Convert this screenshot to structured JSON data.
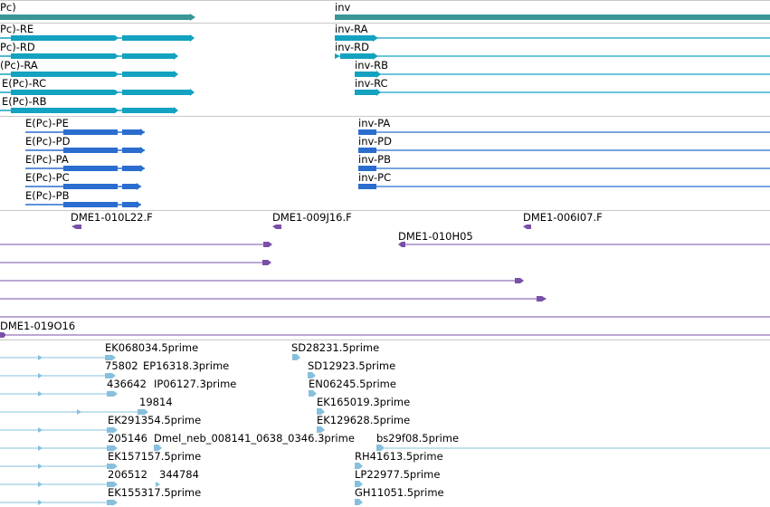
{
  "tracks": {
    "genes": [
      {
        "label": "Pc)"
      },
      {
        "label": "inv"
      }
    ],
    "transcripts_cyan": [
      {
        "label": "Pc)-RE"
      },
      {
        "label": "Pc)-RD"
      },
      {
        "label": "(Pc)-RA"
      },
      {
        "label": "E(Pc)-RC"
      },
      {
        "label": "E(Pc)-RB"
      },
      {
        "label": "inv-RA"
      },
      {
        "label": "inv-RD"
      },
      {
        "label": "inv-RB"
      },
      {
        "label": "inv-RC"
      }
    ],
    "proteins_blue": [
      {
        "label": "E(Pc)-PE"
      },
      {
        "label": "E(Pc)-PD"
      },
      {
        "label": "E(Pc)-PA"
      },
      {
        "label": "E(Pc)-PC"
      },
      {
        "label": "E(Pc)-PB"
      },
      {
        "label": "inv-PA"
      },
      {
        "label": "inv-PD"
      },
      {
        "label": "inv-PB"
      },
      {
        "label": "inv-PC"
      }
    ],
    "clones": [
      {
        "label": "DME1-010L22.F"
      },
      {
        "label": "DME1-009J16.F"
      },
      {
        "label": "DME1-006I07.F"
      },
      {
        "label": "DME1-010H05"
      },
      {
        "label": ""
      },
      {
        "label": ""
      },
      {
        "label": ""
      },
      {
        "label": ""
      },
      {
        "label": "DME1-019O16"
      }
    ],
    "ests": [
      {
        "label": "EK068034.5prime"
      },
      {
        "label": "SD28231.5prime"
      },
      {
        "label": "75802"
      },
      {
        "label": "EP16318.3prime"
      },
      {
        "label": "SD12923.5prime"
      },
      {
        "label": "436642"
      },
      {
        "label": "IP06127.3prime"
      },
      {
        "label": "EN06245.5prime"
      },
      {
        "label": "19814"
      },
      {
        "label": "EK165019.3prime"
      },
      {
        "label": "EK291354.5prime"
      },
      {
        "label": "EK129628.5prime"
      },
      {
        "label": "205146"
      },
      {
        "label": "Dmel_neb_008141_0638_0346.3prime"
      },
      {
        "label": "bs29f08.5prime"
      },
      {
        "label": "EK157157.5prime"
      },
      {
        "label": "RH41613.5prime"
      },
      {
        "label": "206512"
      },
      {
        "label": "344784"
      },
      {
        "label": "LP22977.5prime"
      },
      {
        "label": "EK155317.5prime"
      },
      {
        "label": "GH11051.5prime"
      }
    ]
  },
  "colors": {
    "gene": "#3a9696",
    "transcript": "#13a2bf",
    "protein": "#2b6dcf",
    "clone": "#7a4fa8",
    "est": "#86c0dd",
    "separator": "#c8c8c8"
  }
}
